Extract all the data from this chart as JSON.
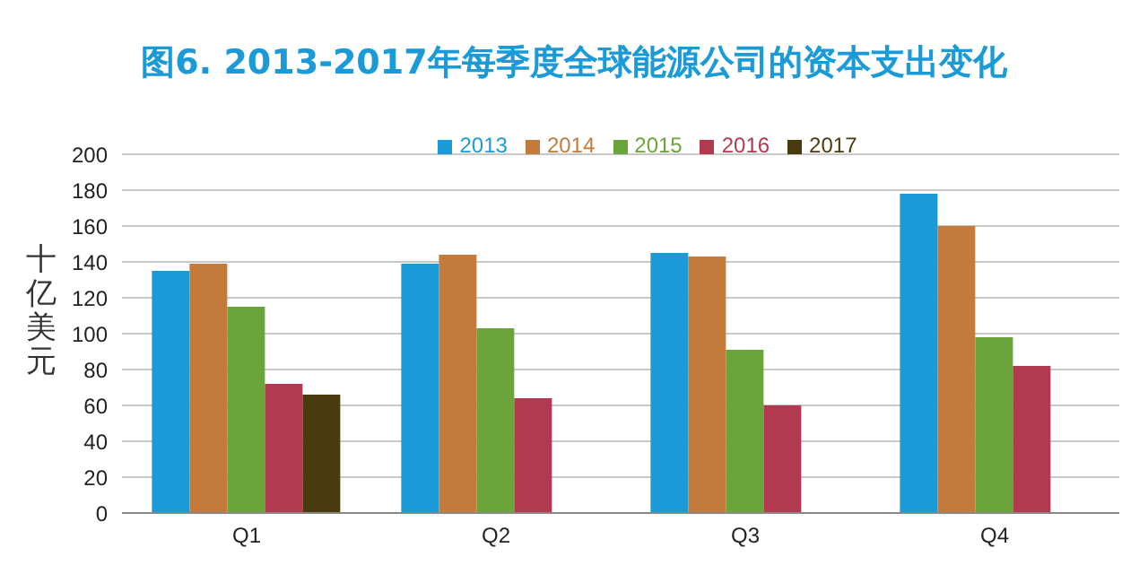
{
  "chart_data": {
    "type": "bar",
    "title": "图6. 2013-2017年每季度全球能源公司的资本支出变化",
    "ylabel": "十亿美元",
    "categories": [
      "Q1",
      "Q2",
      "Q3",
      "Q4"
    ],
    "series": [
      {
        "name": "2013",
        "color": "#1a9ad6",
        "values": [
          135,
          139,
          145,
          178
        ]
      },
      {
        "name": "2014",
        "color": "#c47a3a",
        "values": [
          139,
          144,
          143,
          160
        ]
      },
      {
        "name": "2015",
        "color": "#6aa43a",
        "values": [
          115,
          103,
          91,
          98
        ]
      },
      {
        "name": "2016",
        "color": "#b23a50",
        "values": [
          72,
          64,
          60,
          82
        ]
      },
      {
        "name": "2017",
        "color": "#4a3a10",
        "values": [
          66,
          null,
          null,
          null
        ]
      }
    ],
    "ylim": [
      0,
      200
    ],
    "yticks": [
      0,
      20,
      40,
      60,
      80,
      100,
      120,
      140,
      160,
      180,
      200
    ],
    "grid": "y",
    "legend": "top"
  }
}
